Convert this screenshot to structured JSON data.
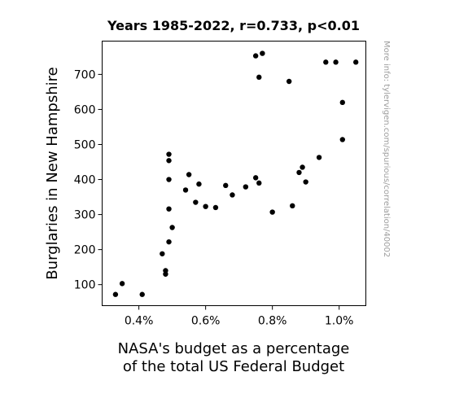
{
  "chart_data": {
    "type": "scatter",
    "title": "Years 1985-2022, r=0.733, p<0.01",
    "xlabel_lines": [
      "NASA's budget as a percentage",
      "of the total US Federal Budget"
    ],
    "ylabel": "Burglaries in New Hampshire",
    "xlim": [
      0.29,
      1.08
    ],
    "ylim": [
      40,
      795
    ],
    "x_ticks": [
      0.4,
      0.6,
      0.8,
      1.0
    ],
    "x_tick_labels": [
      "0.4%",
      "0.6%",
      "0.8%",
      "1.0%"
    ],
    "y_ticks": [
      100,
      200,
      300,
      400,
      500,
      600,
      700
    ],
    "y_tick_labels": [
      "100",
      "200",
      "300",
      "400",
      "500",
      "600",
      "700"
    ],
    "grid": false,
    "marker_color": "#000000",
    "points": [
      {
        "x": 0.33,
        "y": 72
      },
      {
        "x": 0.35,
        "y": 103
      },
      {
        "x": 0.41,
        "y": 72
      },
      {
        "x": 0.47,
        "y": 188
      },
      {
        "x": 0.48,
        "y": 140
      },
      {
        "x": 0.48,
        "y": 130
      },
      {
        "x": 0.49,
        "y": 222
      },
      {
        "x": 0.49,
        "y": 316
      },
      {
        "x": 0.49,
        "y": 400
      },
      {
        "x": 0.49,
        "y": 454
      },
      {
        "x": 0.49,
        "y": 472
      },
      {
        "x": 0.5,
        "y": 263
      },
      {
        "x": 0.54,
        "y": 370
      },
      {
        "x": 0.55,
        "y": 414
      },
      {
        "x": 0.57,
        "y": 335
      },
      {
        "x": 0.58,
        "y": 387
      },
      {
        "x": 0.6,
        "y": 323
      },
      {
        "x": 0.63,
        "y": 320
      },
      {
        "x": 0.66,
        "y": 383
      },
      {
        "x": 0.68,
        "y": 356
      },
      {
        "x": 0.72,
        "y": 379
      },
      {
        "x": 0.75,
        "y": 405
      },
      {
        "x": 0.76,
        "y": 390
      },
      {
        "x": 0.75,
        "y": 753
      },
      {
        "x": 0.77,
        "y": 760
      },
      {
        "x": 0.76,
        "y": 692
      },
      {
        "x": 0.8,
        "y": 307
      },
      {
        "x": 0.85,
        "y": 680
      },
      {
        "x": 0.86,
        "y": 325
      },
      {
        "x": 0.88,
        "y": 420
      },
      {
        "x": 0.89,
        "y": 435
      },
      {
        "x": 0.9,
        "y": 393
      },
      {
        "x": 0.94,
        "y": 463
      },
      {
        "x": 0.96,
        "y": 735
      },
      {
        "x": 0.99,
        "y": 735
      },
      {
        "x": 1.01,
        "y": 620
      },
      {
        "x": 1.01,
        "y": 514
      },
      {
        "x": 1.05,
        "y": 735
      }
    ]
  },
  "watermark": "More info: tylervigen.com/spurious/correlation/40002"
}
